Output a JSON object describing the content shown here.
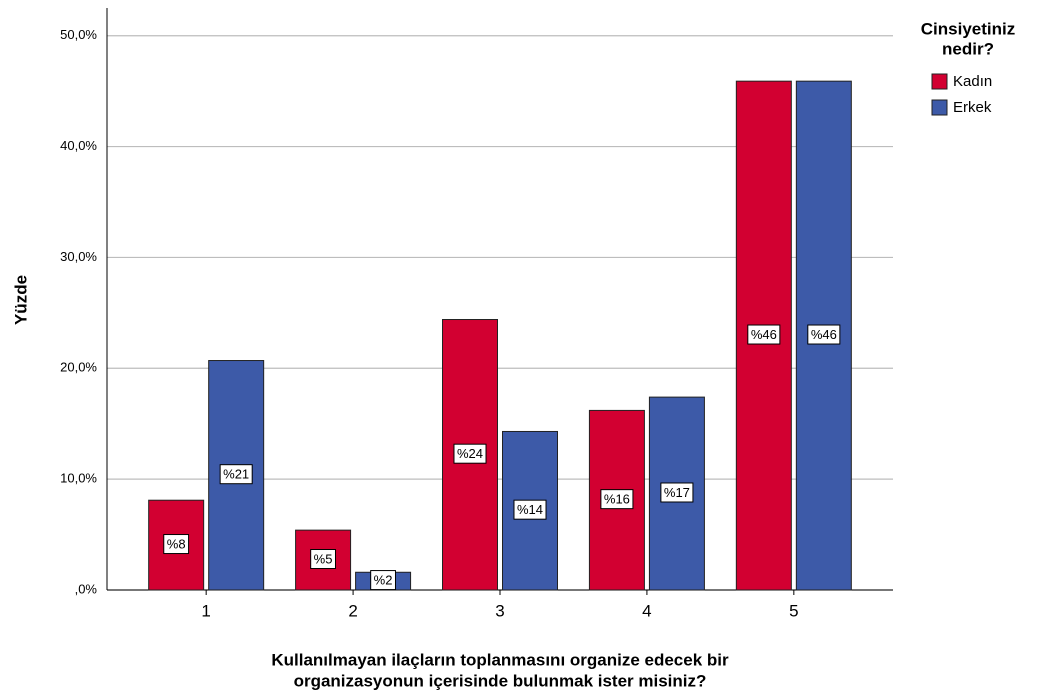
{
  "chart_data": {
    "type": "bar",
    "y_label": "Yüzde",
    "x_label": [
      "Kullanılmayan ilaçların toplanmasını organize edecek bir",
      "organizasyonun içerisinde bulunmak ister misiniz?"
    ],
    "legend_title": [
      "Cinsiyetiniz",
      "nedir?"
    ],
    "legend": "right",
    "grid": true,
    "categories": [
      "1",
      "2",
      "3",
      "4",
      "5"
    ],
    "series": [
      {
        "name": "Kadın",
        "color": "#d20031",
        "values": [
          8.1,
          5.4,
          24.4,
          16.2,
          45.9
        ],
        "value_labels": [
          "%8",
          "%5",
          "%24",
          "%16",
          "%46"
        ]
      },
      {
        "name": "Erkek",
        "color": "#3d5aa8",
        "values": [
          20.7,
          1.6,
          14.3,
          17.4,
          45.9
        ],
        "value_labels": [
          "%21",
          "%2",
          "%14",
          "%17",
          "%46"
        ]
      }
    ],
    "ylim": [
      0,
      52.5
    ],
    "yticks": [
      {
        "value": 0,
        "label": ",0%"
      },
      {
        "value": 10,
        "label": "10,0%"
      },
      {
        "value": 20,
        "label": "20,0%"
      },
      {
        "value": 30,
        "label": "30,0%"
      },
      {
        "value": 40,
        "label": "40,0%"
      },
      {
        "value": 50,
        "label": "50,0%"
      }
    ]
  }
}
